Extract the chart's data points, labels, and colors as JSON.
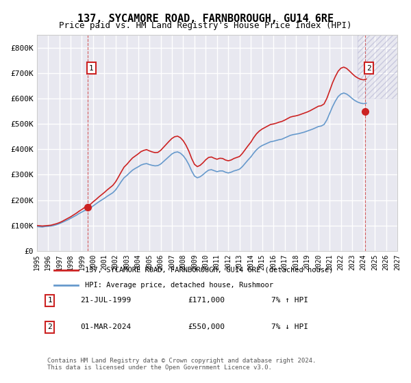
{
  "title": "137, SYCAMORE ROAD, FARNBOROUGH, GU14 6RE",
  "subtitle": "Price paid vs. HM Land Registry's House Price Index (HPI)",
  "ylabel": "",
  "background_color": "#ffffff",
  "plot_background": "#e8e8f0",
  "grid_color": "#ffffff",
  "ylim": [
    0,
    850000
  ],
  "yticks": [
    0,
    100000,
    200000,
    300000,
    400000,
    500000,
    600000,
    700000,
    800000
  ],
  "ytick_labels": [
    "£0",
    "£100K",
    "£200K",
    "£300K",
    "£400K",
    "£500K",
    "£600K",
    "£700K",
    "£800K"
  ],
  "x_start_year": 1995,
  "x_end_year": 2027,
  "hpi_color": "#6699cc",
  "price_color": "#cc2222",
  "legend_label_price": "137, SYCAMORE ROAD, FARNBOROUGH, GU14 6RE (detached house)",
  "legend_label_hpi": "HPI: Average price, detached house, Rushmoor",
  "point1_label": "1",
  "point1_date": "21-JUL-1999",
  "point1_price": "£171,000",
  "point1_hpi": "7% ↑ HPI",
  "point1_year": 1999.55,
  "point1_value": 171000,
  "point2_label": "2",
  "point2_date": "01-MAR-2024",
  "point2_price": "£550,000",
  "point2_hpi": "7% ↓ HPI",
  "point2_year": 2024.17,
  "point2_value": 550000,
  "footer": "Contains HM Land Registry data © Crown copyright and database right 2024.\nThis data is licensed under the Open Government Licence v3.0.",
  "hpi_data_x": [
    1995.0,
    1995.25,
    1995.5,
    1995.75,
    1996.0,
    1996.25,
    1996.5,
    1996.75,
    1997.0,
    1997.25,
    1997.5,
    1997.75,
    1998.0,
    1998.25,
    1998.5,
    1998.75,
    1999.0,
    1999.25,
    1999.5,
    1999.75,
    2000.0,
    2000.25,
    2000.5,
    2000.75,
    2001.0,
    2001.25,
    2001.5,
    2001.75,
    2002.0,
    2002.25,
    2002.5,
    2002.75,
    2003.0,
    2003.25,
    2003.5,
    2003.75,
    2004.0,
    2004.25,
    2004.5,
    2004.75,
    2005.0,
    2005.25,
    2005.5,
    2005.75,
    2006.0,
    2006.25,
    2006.5,
    2006.75,
    2007.0,
    2007.25,
    2007.5,
    2007.75,
    2008.0,
    2008.25,
    2008.5,
    2008.75,
    2009.0,
    2009.25,
    2009.5,
    2009.75,
    2010.0,
    2010.25,
    2010.5,
    2010.75,
    2011.0,
    2011.25,
    2011.5,
    2011.75,
    2012.0,
    2012.25,
    2012.5,
    2012.75,
    2013.0,
    2013.25,
    2013.5,
    2013.75,
    2014.0,
    2014.25,
    2014.5,
    2014.75,
    2015.0,
    2015.25,
    2015.5,
    2015.75,
    2016.0,
    2016.25,
    2016.5,
    2016.75,
    2017.0,
    2017.25,
    2017.5,
    2017.75,
    2018.0,
    2018.25,
    2018.5,
    2018.75,
    2019.0,
    2019.25,
    2019.5,
    2019.75,
    2020.0,
    2020.25,
    2020.5,
    2020.75,
    2021.0,
    2021.25,
    2021.5,
    2021.75,
    2022.0,
    2022.25,
    2022.5,
    2022.75,
    2023.0,
    2023.25,
    2023.5,
    2023.75,
    2024.0,
    2024.25
  ],
  "hpi_data_y": [
    96000,
    95000,
    94000,
    96000,
    97000,
    98000,
    100000,
    103000,
    107000,
    112000,
    117000,
    122000,
    128000,
    134000,
    140000,
    147000,
    153000,
    159000,
    162000,
    168000,
    177000,
    185000,
    193000,
    200000,
    207000,
    215000,
    222000,
    229000,
    240000,
    256000,
    273000,
    288000,
    297000,
    308000,
    318000,
    325000,
    331000,
    338000,
    342000,
    344000,
    340000,
    337000,
    335000,
    336000,
    342000,
    352000,
    362000,
    372000,
    382000,
    388000,
    390000,
    385000,
    375000,
    360000,
    340000,
    315000,
    295000,
    288000,
    292000,
    300000,
    310000,
    318000,
    320000,
    316000,
    312000,
    315000,
    315000,
    310000,
    307000,
    310000,
    315000,
    318000,
    322000,
    332000,
    345000,
    358000,
    370000,
    385000,
    398000,
    408000,
    415000,
    420000,
    425000,
    430000,
    432000,
    435000,
    438000,
    440000,
    445000,
    450000,
    455000,
    458000,
    460000,
    462000,
    465000,
    468000,
    472000,
    476000,
    480000,
    485000,
    490000,
    492000,
    498000,
    516000,
    542000,
    568000,
    590000,
    608000,
    618000,
    622000,
    618000,
    610000,
    600000,
    592000,
    586000,
    582000,
    580000,
    582000
  ],
  "price_data_x": [
    1995.0,
    1995.25,
    1995.5,
    1995.75,
    1996.0,
    1996.25,
    1996.5,
    1996.75,
    1997.0,
    1997.25,
    1997.5,
    1997.75,
    1998.0,
    1998.25,
    1998.5,
    1998.75,
    1999.0,
    1999.25,
    1999.5,
    1999.75,
    2000.0,
    2000.25,
    2000.5,
    2000.75,
    2001.0,
    2001.25,
    2001.5,
    2001.75,
    2002.0,
    2002.25,
    2002.5,
    2002.75,
    2003.0,
    2003.25,
    2003.5,
    2003.75,
    2004.0,
    2004.25,
    2004.5,
    2004.75,
    2005.0,
    2005.25,
    2005.5,
    2005.75,
    2006.0,
    2006.25,
    2006.5,
    2006.75,
    2007.0,
    2007.25,
    2007.5,
    2007.75,
    2008.0,
    2008.25,
    2008.5,
    2008.75,
    2009.0,
    2009.25,
    2009.5,
    2009.75,
    2010.0,
    2010.25,
    2010.5,
    2010.75,
    2011.0,
    2011.25,
    2011.5,
    2011.75,
    2012.0,
    2012.25,
    2012.5,
    2012.75,
    2013.0,
    2013.25,
    2013.5,
    2013.75,
    2014.0,
    2014.25,
    2014.5,
    2014.75,
    2015.0,
    2015.25,
    2015.5,
    2015.75,
    2016.0,
    2016.25,
    2016.5,
    2016.75,
    2017.0,
    2017.25,
    2017.5,
    2017.75,
    2018.0,
    2018.25,
    2018.5,
    2018.75,
    2019.0,
    2019.25,
    2019.5,
    2019.75,
    2020.0,
    2020.25,
    2020.5,
    2020.75,
    2021.0,
    2021.25,
    2021.5,
    2021.75,
    2022.0,
    2022.25,
    2022.5,
    2022.75,
    2023.0,
    2023.25,
    2023.5,
    2023.75,
    2024.0,
    2024.25
  ],
  "price_data_y": [
    100000,
    99000,
    98000,
    99000,
    100000,
    101000,
    104000,
    107000,
    111000,
    116000,
    122000,
    128000,
    134000,
    141000,
    148000,
    156000,
    163000,
    171000,
    175000,
    183000,
    193000,
    202000,
    212000,
    221000,
    230000,
    240000,
    249000,
    258000,
    272000,
    291000,
    311000,
    330000,
    341000,
    354000,
    366000,
    374000,
    382000,
    391000,
    396000,
    399000,
    394000,
    390000,
    387000,
    388000,
    396000,
    408000,
    420000,
    432000,
    443000,
    450000,
    452000,
    446000,
    434000,
    416000,
    393000,
    364000,
    341000,
    332000,
    337000,
    347000,
    359000,
    368000,
    370000,
    365000,
    361000,
    365000,
    364000,
    358000,
    355000,
    358000,
    364000,
    368000,
    372000,
    384000,
    399000,
    414000,
    428000,
    446000,
    461000,
    472000,
    480000,
    486000,
    492000,
    498000,
    500000,
    503000,
    507000,
    510000,
    515000,
    521000,
    527000,
    530000,
    532000,
    535000,
    539000,
    543000,
    547000,
    552000,
    558000,
    564000,
    570000,
    572000,
    579000,
    601000,
    631000,
    662000,
    687000,
    708000,
    720000,
    724000,
    719000,
    709000,
    698000,
    688000,
    681000,
    676000,
    674000,
    677000
  ]
}
